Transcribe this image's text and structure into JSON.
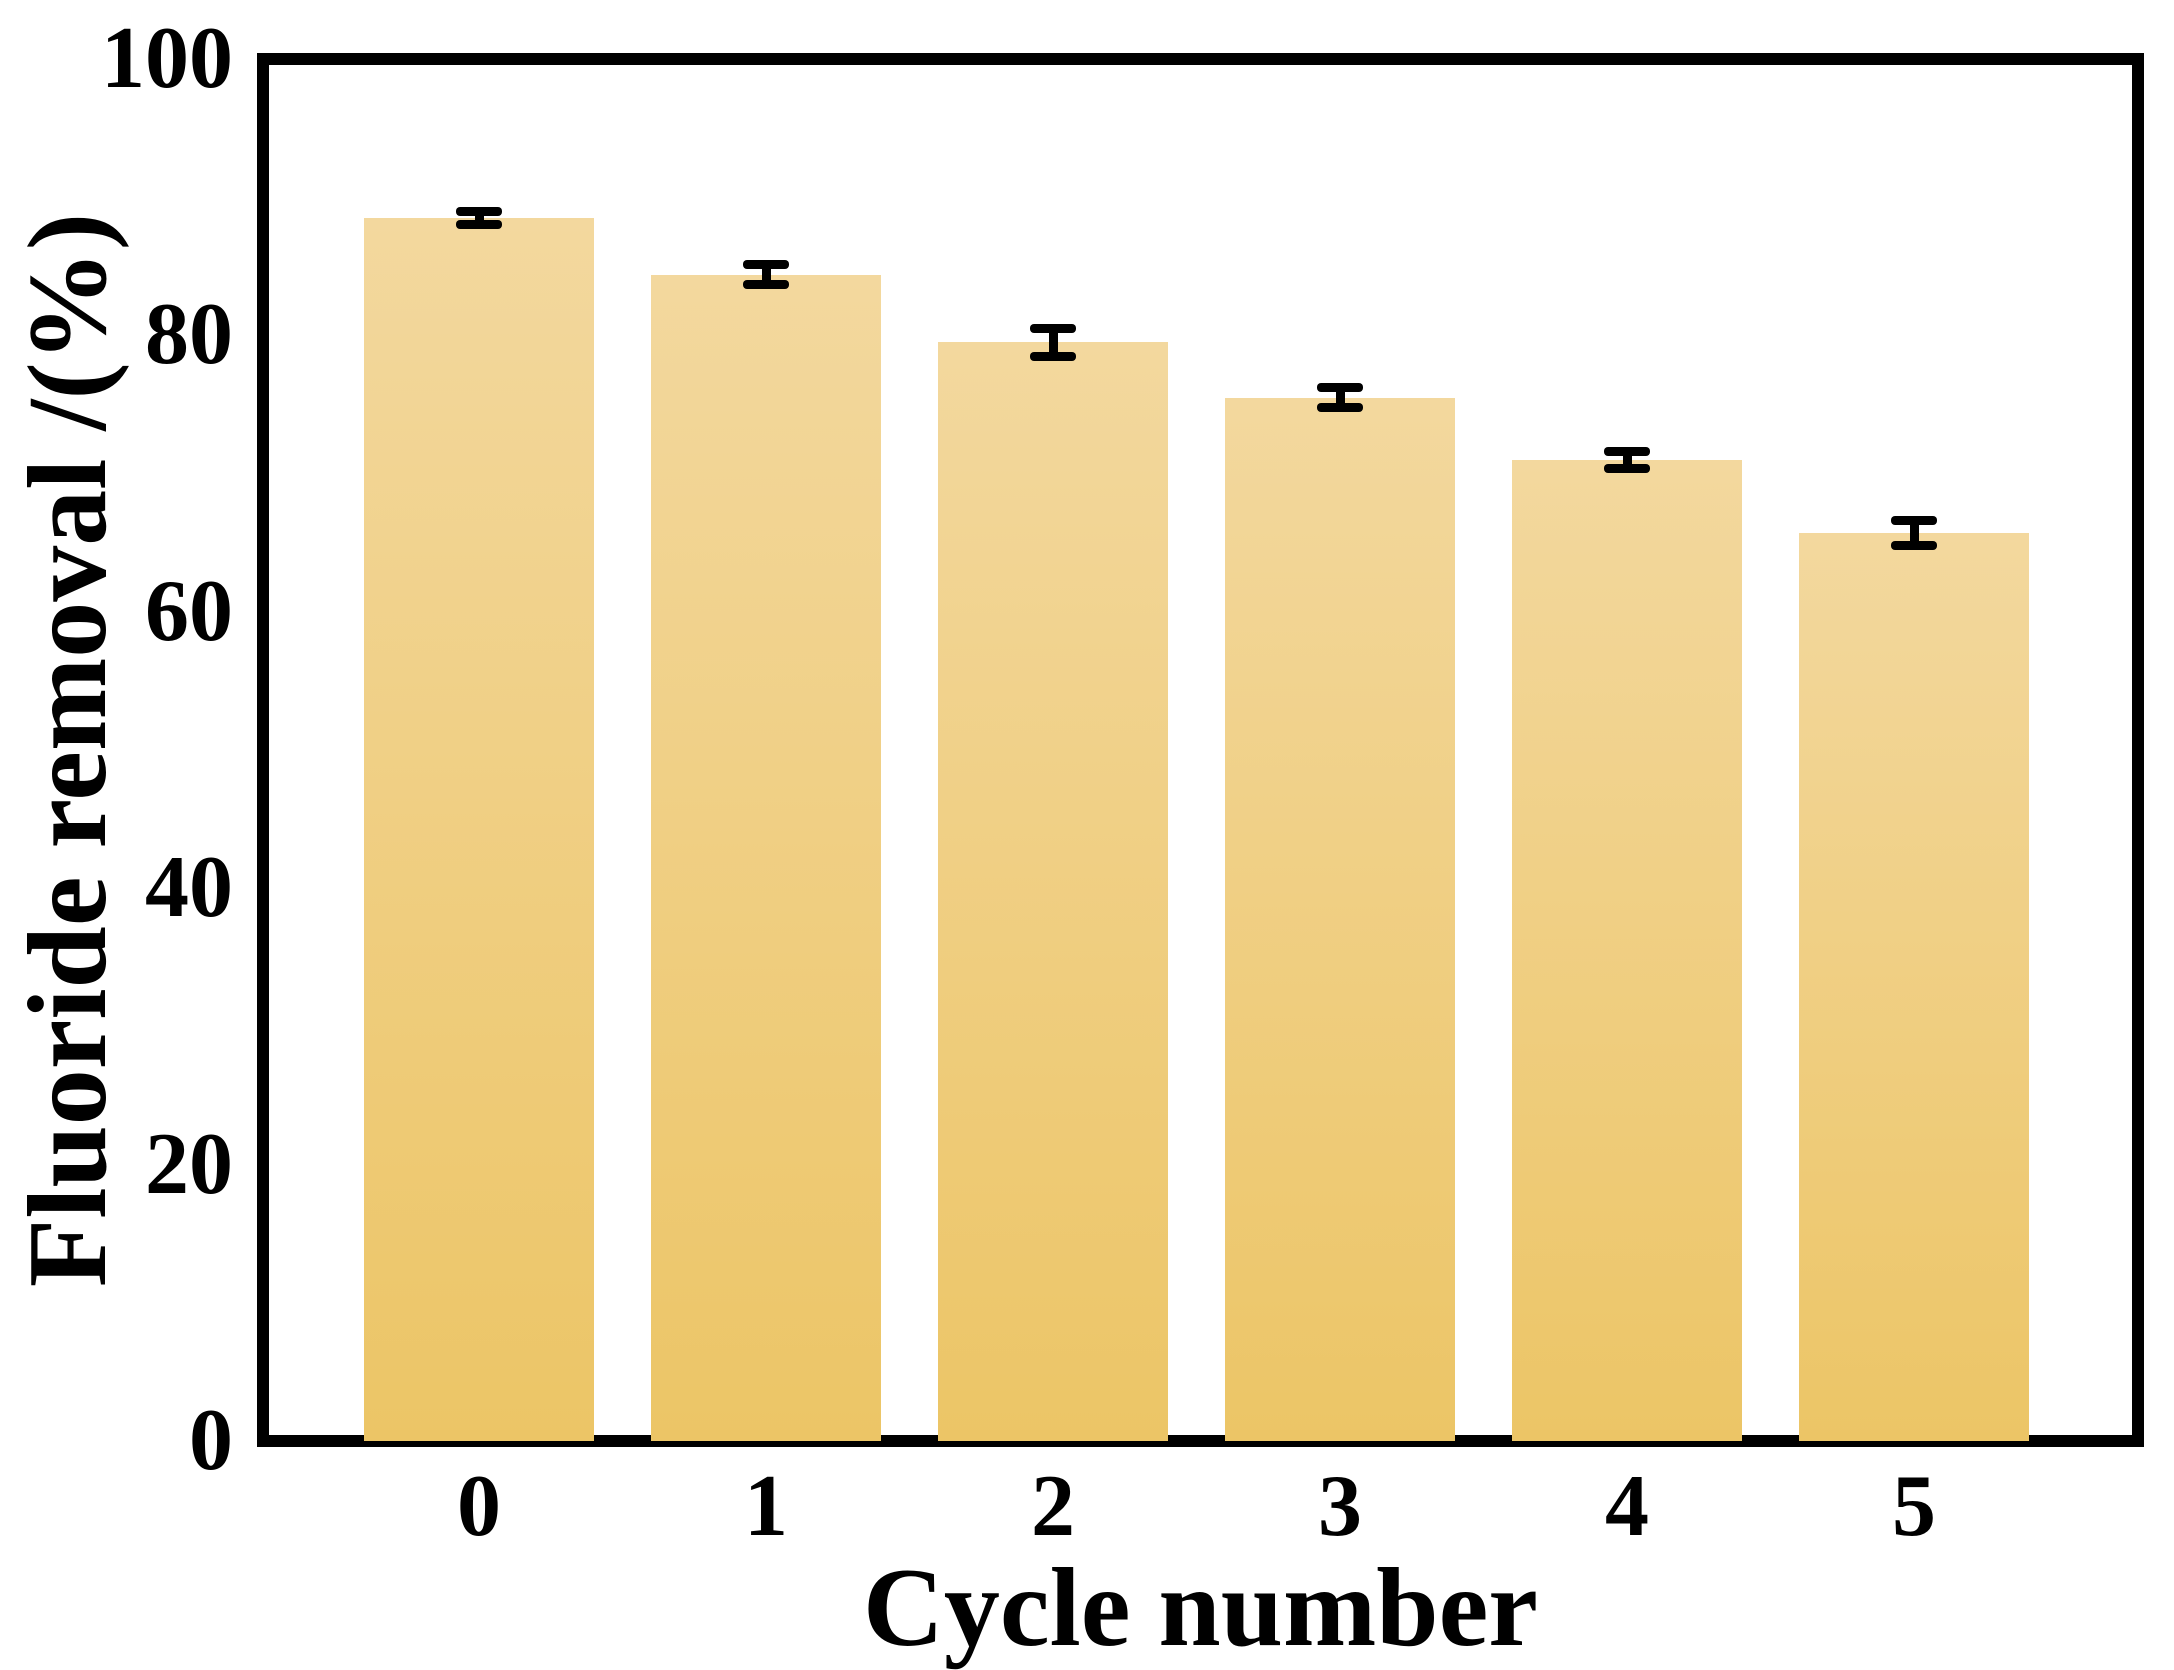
{
  "figure": {
    "background_color": "#ffffff",
    "frame_color": "#000000",
    "text_color": "#000000"
  },
  "chart_data": {
    "type": "bar",
    "title": "",
    "categories": [
      "0",
      "1",
      "2",
      "3",
      "4",
      "5"
    ],
    "values": [
      88.5,
      84.4,
      79.5,
      75.5,
      71.0,
      65.7
    ],
    "error_bars": [
      0.5,
      0.7,
      1.0,
      0.7,
      0.6,
      0.9
    ],
    "xlabel": "Cycle number",
    "ylabel": "Fluoride removal /(%)",
    "ylim": [
      0,
      100
    ],
    "y_ticks": [
      100,
      80,
      60,
      40,
      20,
      0
    ],
    "grid": false,
    "legend": null,
    "bar_color_top": "#F3D89E",
    "bar_color_bottom": "#ECC566",
    "error_bar_color": "#000000",
    "axis_color": "#000000"
  }
}
